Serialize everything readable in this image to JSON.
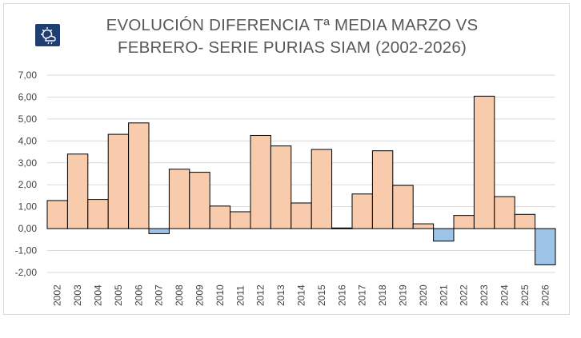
{
  "title_line1": "EVOLUCIÓN DIFERENCIA Tª MEDIA MARZO VS",
  "title_line2": "FEBRERO- SERIE PURIAS SIAM (2002-2026)",
  "colors": {
    "positive_bar": "#f8cbad",
    "negative_bar": "#9dc3e6",
    "bar_border": "#000000",
    "grid": "#d9d9d9",
    "title_text": "#595959",
    "logo_bg": "#1f3f74"
  },
  "logo": {
    "icon": "weather-sun-cloud-icon"
  },
  "chart_data": {
    "type": "bar",
    "title": "EVOLUCIÓN DIFERENCIA Tª MEDIA MARZO VS FEBRERO- SERIE PURIAS SIAM (2002-2026)",
    "categories": [
      "2002",
      "2003",
      "2004",
      "2005",
      "2006",
      "2007",
      "2008",
      "2009",
      "2010",
      "2011",
      "2012",
      "2013",
      "2014",
      "2015",
      "2016",
      "2017",
      "2018",
      "2019",
      "2020",
      "2021",
      "2022",
      "2023",
      "2024",
      "2025",
      "2026"
    ],
    "values": [
      1.28,
      3.4,
      1.33,
      4.3,
      4.82,
      -0.23,
      2.71,
      2.57,
      1.03,
      0.77,
      4.25,
      3.77,
      1.17,
      3.61,
      0.03,
      1.58,
      3.55,
      1.97,
      0.22,
      -0.57,
      0.6,
      6.04,
      1.46,
      0.65,
      -1.65
    ],
    "ylim": [
      -2,
      7
    ],
    "yticks": [
      "7,00",
      "6,00",
      "5,00",
      "4,00",
      "3,00",
      "2,00",
      "1,00",
      "0,00",
      "-1,00",
      "-2,00"
    ],
    "ytick_values": [
      7,
      6,
      5,
      4,
      3,
      2,
      1,
      0,
      -1,
      -2
    ],
    "xlabel": "",
    "ylabel": "",
    "grid": true,
    "legend": "none"
  }
}
